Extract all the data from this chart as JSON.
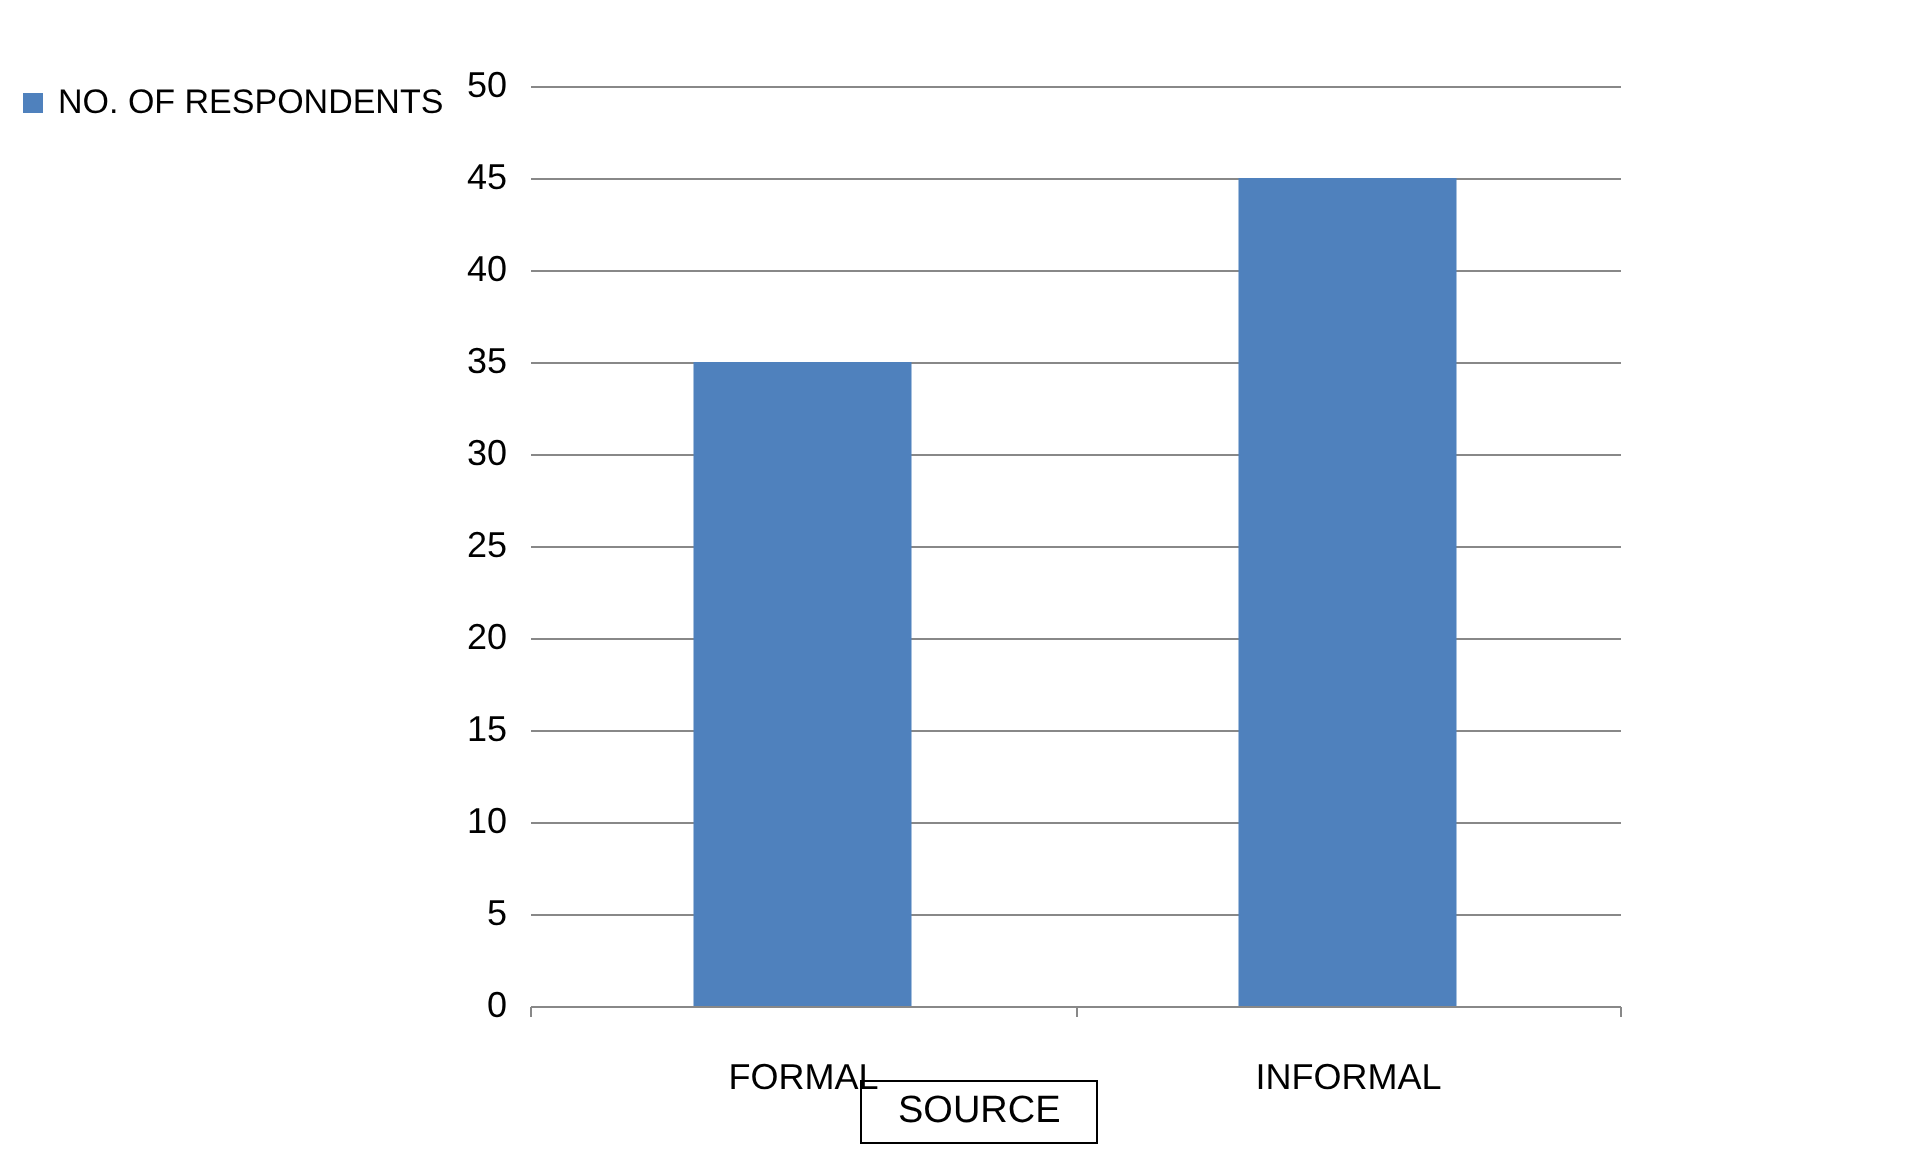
{
  "chart_data": {
    "type": "bar",
    "categories": [
      "FORMAL",
      "INFORMAL"
    ],
    "series": [
      {
        "name": "NO. OF RESPONDENTS",
        "color": "#4f81bd",
        "values": [
          35,
          45
        ]
      }
    ],
    "ylim": [
      0,
      50
    ],
    "yticks": [
      0,
      5,
      10,
      15,
      20,
      25,
      30,
      35,
      40,
      45,
      50
    ],
    "grid": "y",
    "legend": "left",
    "annotations": [
      "SOURCE"
    ]
  }
}
